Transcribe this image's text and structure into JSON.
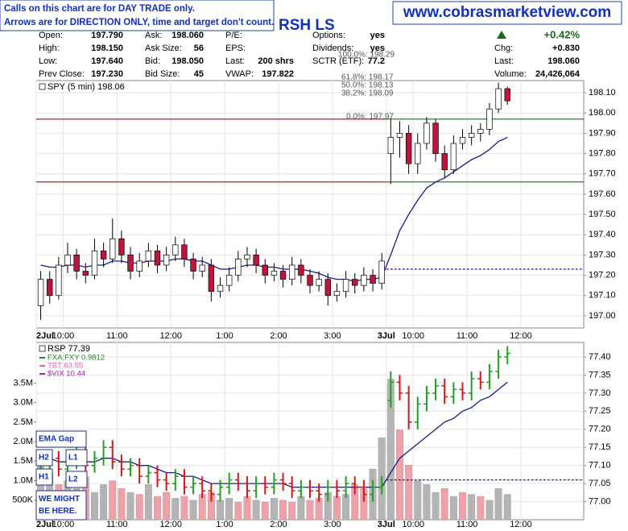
{
  "header": {
    "notice_lines": [
      "Calls on this chart are for DAY TRADE only.",
      "Arrows are for DIRECTION ONLY, time and target don't count."
    ],
    "website": "www.cobrasmarketview.com",
    "symbol": "RSH LS",
    "quote_columns": [
      [
        {
          "label": "Open:",
          "value": "197.790"
        },
        {
          "label": "High:",
          "value": "198.150"
        },
        {
          "label": "Low:",
          "value": "197.640"
        },
        {
          "label": "Prev Close:",
          "value": "197.230"
        }
      ],
      [
        {
          "label": "Ask:",
          "value": "198.060"
        },
        {
          "label": "Ask Size:",
          "value": "56"
        },
        {
          "label": "Bid:",
          "value": "198.050"
        },
        {
          "label": "Bid Size:",
          "value": "45"
        }
      ],
      [
        {
          "label": "P/E:"
        },
        {
          "label": "EPS:"
        },
        {
          "label": "Last:",
          "value": "200 shrs"
        },
        {
          "label": "VWAP:",
          "value": "197.822"
        }
      ],
      [
        {
          "label": "Options:",
          "value": "yes"
        },
        {
          "label": "Dividends:",
          "value": "yes"
        },
        {
          "label": "SCTR (ETF):",
          "value": "77.2"
        }
      ]
    ],
    "change_pct": "+0.42%",
    "summary": [
      {
        "label": "Chg:",
        "value": "+0.830"
      },
      {
        "label": "Last:",
        "value": "198.060"
      },
      {
        "label": "Volume:",
        "value": "24,426,064"
      }
    ]
  },
  "fib_labels": [
    "100.0%: 198.29",
    "61.8%: 198.17",
    "50.0%: 198.13",
    "38.2%: 198.09",
    "0.0%: 197.97"
  ],
  "annotations": [
    "EMA Gap",
    "H2",
    "L1",
    "H1",
    "L2",
    "WE MIGHT BE HERE."
  ],
  "chart_data": [
    {
      "type": "candlestick",
      "title": "SPY (5 min) 198.06",
      "categories": [
        "2Jul",
        null,
        null,
        "10:00",
        null,
        null,
        null,
        null,
        null,
        "11:00",
        null,
        null,
        null,
        null,
        null,
        "12:00",
        null,
        null,
        null,
        null,
        null,
        "1:00",
        null,
        null,
        null,
        null,
        null,
        "2:00",
        null,
        null,
        null,
        null,
        null,
        "3:00",
        null,
        null,
        null,
        null,
        null,
        "3Jul",
        null,
        null,
        "10:00",
        null,
        null,
        null,
        null,
        null,
        "11:00",
        null,
        null,
        null,
        null,
        null,
        "12:00",
        null,
        null,
        null,
        null,
        null,
        null
      ],
      "open": [
        197.05,
        197.18,
        197.1,
        197.25,
        197.3,
        197.22,
        197.2,
        197.32,
        197.28,
        197.38,
        197.3,
        197.22,
        197.27,
        197.32,
        197.25,
        197.3,
        197.35,
        197.28,
        197.22,
        197.25,
        197.12,
        197.15,
        197.2,
        197.28,
        197.3,
        197.25,
        197.2,
        197.22,
        197.18,
        197.25,
        197.2,
        197.15,
        197.18,
        197.1,
        197.12,
        197.18,
        197.15,
        197.2,
        197.16,
        197.8,
        197.88,
        197.9,
        197.75,
        197.85,
        197.95,
        197.8,
        197.72,
        197.85,
        197.88,
        197.9,
        197.92,
        198.02,
        198.12,
        null,
        null,
        null,
        null,
        null,
        null,
        null,
        null
      ],
      "high": [
        197.22,
        197.22,
        197.29,
        197.36,
        197.33,
        197.26,
        197.38,
        197.36,
        197.48,
        197.42,
        197.34,
        197.31,
        197.36,
        197.35,
        197.34,
        197.39,
        197.38,
        197.31,
        197.29,
        197.28,
        197.19,
        197.24,
        197.32,
        197.34,
        197.33,
        197.28,
        197.26,
        197.25,
        197.29,
        197.28,
        197.23,
        197.22,
        197.21,
        197.16,
        197.22,
        197.21,
        197.24,
        197.23,
        197.31,
        197.97,
        197.96,
        197.94,
        197.9,
        197.98,
        197.97,
        197.84,
        197.89,
        197.92,
        197.94,
        197.95,
        198.05,
        198.15,
        198.13,
        null,
        null,
        null,
        null,
        null,
        null,
        null,
        null
      ],
      "low": [
        196.98,
        197.06,
        197.08,
        197.21,
        197.18,
        197.16,
        197.18,
        197.24,
        197.26,
        197.26,
        197.18,
        197.19,
        197.24,
        197.21,
        197.22,
        197.27,
        197.24,
        197.18,
        197.19,
        197.07,
        197.09,
        197.12,
        197.17,
        197.24,
        197.21,
        197.16,
        197.17,
        197.14,
        197.15,
        197.16,
        197.11,
        197.12,
        197.05,
        197.07,
        197.09,
        197.11,
        197.12,
        197.12,
        197.13,
        197.65,
        197.78,
        197.7,
        197.7,
        197.82,
        197.76,
        197.68,
        197.7,
        197.82,
        197.84,
        197.86,
        197.89,
        198.0,
        198.04,
        null,
        null,
        null,
        null,
        null,
        null,
        null,
        null
      ],
      "close": [
        197.18,
        197.1,
        197.25,
        197.3,
        197.22,
        197.2,
        197.32,
        197.28,
        197.38,
        197.3,
        197.22,
        197.27,
        197.32,
        197.25,
        197.3,
        197.35,
        197.28,
        197.22,
        197.25,
        197.12,
        197.15,
        197.2,
        197.28,
        197.3,
        197.25,
        197.2,
        197.22,
        197.18,
        197.25,
        197.2,
        197.15,
        197.18,
        197.1,
        197.12,
        197.18,
        197.15,
        197.2,
        197.16,
        197.27,
        197.88,
        197.9,
        197.75,
        197.85,
        197.95,
        197.8,
        197.72,
        197.85,
        197.88,
        197.9,
        197.92,
        198.02,
        198.12,
        198.06,
        null,
        null,
        null,
        null,
        null,
        null,
        null,
        null
      ],
      "ema": [
        197.25,
        197.24,
        197.24,
        197.25,
        197.25,
        197.24,
        197.25,
        197.25,
        197.27,
        197.27,
        197.26,
        197.26,
        197.27,
        197.27,
        197.27,
        197.28,
        197.28,
        197.27,
        197.27,
        197.25,
        197.23,
        197.23,
        197.24,
        197.25,
        197.25,
        197.24,
        197.24,
        197.23,
        197.23,
        197.23,
        197.22,
        197.21,
        197.19,
        197.18,
        197.18,
        197.17,
        197.18,
        197.18,
        197.19,
        197.3,
        197.42,
        197.5,
        197.57,
        197.63,
        197.66,
        197.68,
        197.71,
        197.74,
        197.77,
        197.79,
        197.82,
        197.86,
        197.88,
        null,
        null,
        null,
        null,
        null,
        null,
        null,
        null
      ],
      "ema_color": "#1a1a8c",
      "up_color": "#ffffff",
      "down_color": "#c0143c",
      "ylim": [
        196.94,
        198.16
      ],
      "yticks": [
        {
          "value": 197.0,
          "label": "197.00"
        },
        {
          "value": 197.1,
          "label": "197.10"
        },
        {
          "value": 197.2,
          "label": "197.20"
        },
        {
          "value": 197.3,
          "label": "197.30"
        },
        {
          "value": 197.4,
          "label": "197.40"
        },
        {
          "value": 197.5,
          "label": "197.50"
        },
        {
          "value": 197.6,
          "label": "197.60"
        },
        {
          "value": 197.7,
          "label": "197.70"
        },
        {
          "value": 197.8,
          "label": "197.80"
        },
        {
          "value": 197.9,
          "label": "197.90"
        },
        {
          "value": 198.0,
          "label": "198.00"
        },
        {
          "value": 198.1,
          "label": "198.10"
        }
      ],
      "levels": [
        {
          "value": 197.97,
          "color": "#c00000",
          "end": 39
        },
        {
          "value": 197.66,
          "color": "#c00000",
          "end": 39
        },
        {
          "value": 197.97,
          "color": "#008000",
          "start": 39
        },
        {
          "value": 197.66,
          "color": "#008000",
          "start": 39
        },
        {
          "value": 197.23,
          "color": "#2020b0",
          "start": 39,
          "dashed": true
        }
      ],
      "grid": true
    },
    {
      "type": "ohlc",
      "title": "RSP 77.39",
      "overlays": [
        {
          "name": "FXA:FXY 0.9812",
          "color": "#228b22"
        },
        {
          "name": "TBT 63.55",
          "color": "#e060c0"
        },
        {
          "name": "$VIX 10.44",
          "color": "#a020c0"
        }
      ],
      "categories": [
        "2Jul",
        null,
        null,
        "10:00",
        null,
        null,
        null,
        null,
        null,
        "11:00",
        null,
        null,
        null,
        null,
        null,
        "12:00",
        null,
        null,
        null,
        null,
        null,
        "1:00",
        null,
        null,
        null,
        null,
        null,
        "2:00",
        null,
        null,
        null,
        null,
        null,
        "3:00",
        null,
        null,
        null,
        null,
        null,
        "3Jul",
        null,
        null,
        "10:00",
        null,
        null,
        null,
        null,
        null,
        "11:00",
        null,
        null,
        null,
        null,
        null,
        "12:00",
        null,
        null,
        null,
        null,
        null,
        null
      ],
      "open": [
        77.08,
        77.1,
        77.12,
        77.09,
        77.11,
        77.13,
        77.1,
        77.12,
        77.15,
        77.11,
        77.09,
        77.1,
        77.07,
        77.08,
        77.06,
        77.05,
        77.07,
        77.04,
        77.05,
        77.03,
        77.02,
        77.04,
        77.06,
        77.05,
        77.03,
        77.05,
        77.04,
        77.06,
        77.05,
        77.03,
        77.04,
        77.03,
        77.02,
        77.04,
        77.03,
        77.05,
        77.04,
        77.02,
        77.04,
        77.28,
        77.33,
        77.3,
        77.22,
        77.27,
        77.3,
        77.32,
        77.29,
        77.31,
        77.3,
        77.34,
        77.33,
        77.36,
        77.4,
        null,
        null,
        null,
        null,
        null,
        null,
        null,
        null
      ],
      "high": [
        77.12,
        77.14,
        77.14,
        77.13,
        77.15,
        77.15,
        77.14,
        77.17,
        77.17,
        77.13,
        77.12,
        77.12,
        77.1,
        77.1,
        77.08,
        77.09,
        77.09,
        77.07,
        77.07,
        77.05,
        77.06,
        77.08,
        77.08,
        77.07,
        77.07,
        77.07,
        77.08,
        77.08,
        77.07,
        77.06,
        77.06,
        77.05,
        77.06,
        77.06,
        77.07,
        77.07,
        77.06,
        77.06,
        77.07,
        77.36,
        77.35,
        77.32,
        77.29,
        77.32,
        77.34,
        77.34,
        77.33,
        77.33,
        77.36,
        77.36,
        77.38,
        77.42,
        77.43,
        null,
        null,
        null,
        null,
        null,
        null,
        null,
        null
      ],
      "low": [
        77.06,
        77.08,
        77.07,
        77.07,
        77.09,
        77.08,
        77.08,
        77.1,
        77.09,
        77.07,
        77.07,
        77.05,
        77.05,
        77.04,
        77.03,
        77.03,
        77.02,
        77.02,
        77.01,
        77.0,
        77.0,
        77.02,
        77.03,
        77.01,
        77.01,
        77.02,
        77.02,
        77.03,
        77.01,
        77.01,
        77.01,
        77.0,
        77.0,
        77.01,
        77.01,
        77.02,
        77.0,
        77.0,
        77.02,
        77.26,
        77.28,
        77.2,
        77.2,
        77.25,
        77.28,
        77.27,
        77.27,
        77.28,
        77.28,
        77.31,
        77.31,
        77.34,
        77.38,
        null,
        null,
        null,
        null,
        null,
        null,
        null,
        null
      ],
      "close": [
        77.1,
        77.12,
        77.09,
        77.11,
        77.13,
        77.1,
        77.12,
        77.15,
        77.11,
        77.09,
        77.1,
        77.07,
        77.08,
        77.06,
        77.05,
        77.07,
        77.04,
        77.05,
        77.03,
        77.02,
        77.04,
        77.06,
        77.05,
        77.03,
        77.05,
        77.04,
        77.06,
        77.05,
        77.03,
        77.04,
        77.03,
        77.02,
        77.04,
        77.03,
        77.05,
        77.04,
        77.02,
        77.04,
        77.05,
        77.33,
        77.3,
        77.22,
        77.27,
        77.3,
        77.32,
        77.29,
        77.31,
        77.3,
        77.34,
        77.33,
        77.36,
        77.4,
        77.41,
        null,
        null,
        null,
        null,
        null,
        null,
        null,
        null
      ],
      "ema": [
        77.12,
        77.12,
        77.11,
        77.11,
        77.11,
        77.11,
        77.11,
        77.12,
        77.12,
        77.11,
        77.11,
        77.1,
        77.1,
        77.09,
        77.08,
        77.08,
        77.07,
        77.07,
        77.06,
        77.05,
        77.05,
        77.05,
        77.05,
        77.05,
        77.05,
        77.05,
        77.05,
        77.05,
        77.04,
        77.04,
        77.04,
        77.04,
        77.04,
        77.04,
        77.04,
        77.04,
        77.04,
        77.04,
        77.04,
        77.08,
        77.12,
        77.14,
        77.16,
        77.18,
        77.2,
        77.22,
        77.23,
        77.25,
        77.26,
        77.28,
        77.29,
        77.31,
        77.33,
        null,
        null,
        null,
        null,
        null,
        null,
        null,
        null
      ],
      "volume": [
        1600000,
        1200000,
        900000,
        1000000,
        800000,
        1100000,
        700000,
        900000,
        1000000,
        800000,
        700000,
        650000,
        900000,
        600000,
        700000,
        550000,
        600000,
        500000,
        650000,
        700000,
        500000,
        550000,
        450000,
        600000,
        500000,
        450000,
        550000,
        500000,
        450000,
        600000,
        500000,
        550000,
        700000,
        600000,
        650000,
        900000,
        800000,
        1300000,
        2100000,
        3600000,
        2300000,
        1400000,
        1000000,
        900000,
        700000,
        800000,
        600000,
        700000,
        650000,
        600000,
        500000,
        800000,
        650000,
        null,
        null,
        null,
        null,
        null,
        null,
        null,
        null
      ],
      "ema_color": "#1a1a8c",
      "up_color": "#22a022",
      "down_color": "#d01818",
      "volume_up_color": "#b4b4b4",
      "volume_down_color": "#f0a0a8",
      "ylim": [
        76.95,
        77.44
      ],
      "yticks": [
        {
          "value": 77.0,
          "label": "77.00"
        },
        {
          "value": 77.05,
          "label": "77.05"
        },
        {
          "value": 77.1,
          "label": "77.10"
        },
        {
          "value": 77.15,
          "label": "77.15"
        },
        {
          "value": 77.2,
          "label": "77.20"
        },
        {
          "value": 77.25,
          "label": "77.25"
        },
        {
          "value": 77.3,
          "label": "77.30"
        },
        {
          "value": 77.35,
          "label": "77.35"
        },
        {
          "value": 77.4,
          "label": "77.40"
        }
      ],
      "vlim": [
        0,
        4540000
      ],
      "vticks": [
        {
          "value": 500000,
          "label": "500K"
        },
        {
          "value": 1000000,
          "label": "1.0M"
        },
        {
          "value": 1500000,
          "label": "1.5M"
        },
        {
          "value": 2000000,
          "label": "2.0M"
        },
        {
          "value": 2500000,
          "label": "2.5M"
        },
        {
          "value": 3000000,
          "label": "3.0M"
        },
        {
          "value": 3500000,
          "label": "3.5M"
        }
      ],
      "levels": [
        {
          "value": 77.06,
          "color": "#2020b0",
          "start": 39,
          "dashed": true
        }
      ],
      "grid": true
    }
  ]
}
